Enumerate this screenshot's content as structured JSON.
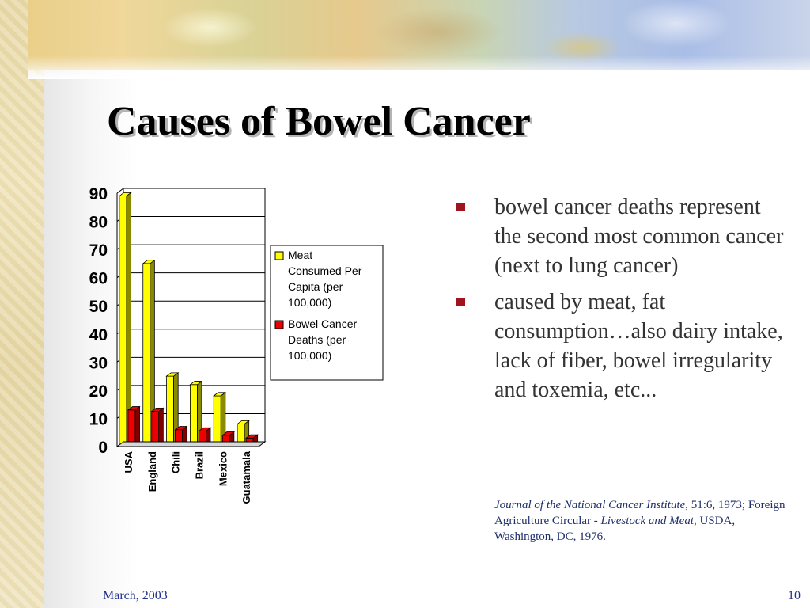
{
  "slide": {
    "title": "Causes of Bowel Cancer",
    "footer_date": "March, 2003",
    "page_number": "10"
  },
  "bullets": [
    "bowel cancer deaths represent the second most common cancer (next to lung cancer)",
    "caused by meat, fat consumption…also dairy intake, lack of fiber, bowel irregularity and toxemia, etc..."
  ],
  "citation": {
    "journal": "Journal of the National Cancer Institute",
    "journal_ref": ", 51:6, 1973; Foreign Agriculture Circular - ",
    "publication": "Livestock and Meat",
    "publication_ref": ", USDA, Washington, DC, 1976."
  },
  "colors": {
    "meat": "#ffff00",
    "meat_side": "#8a8a00",
    "deaths": "#ee0000",
    "deaths_side": "#800000",
    "bullet": "#a0141e"
  },
  "chart_data": {
    "type": "bar",
    "categories": [
      "USA",
      "England",
      "Chili",
      "Brazil",
      "Mexico",
      "Guatamala"
    ],
    "series": [
      {
        "name": "Meat Consumed Per Capita (per 100,000)",
        "values": [
          89,
          65,
          25,
          22,
          18,
          8
        ]
      },
      {
        "name": "Bowel Cancer Deaths (per 100,000)",
        "values": [
          13,
          12.5,
          6,
          5.5,
          4,
          3
        ]
      }
    ],
    "yticks": [
      0,
      10,
      20,
      30,
      40,
      50,
      60,
      70,
      80,
      90
    ],
    "ylim": [
      0,
      90
    ],
    "grid": true,
    "legend": "right",
    "three_d": true
  }
}
